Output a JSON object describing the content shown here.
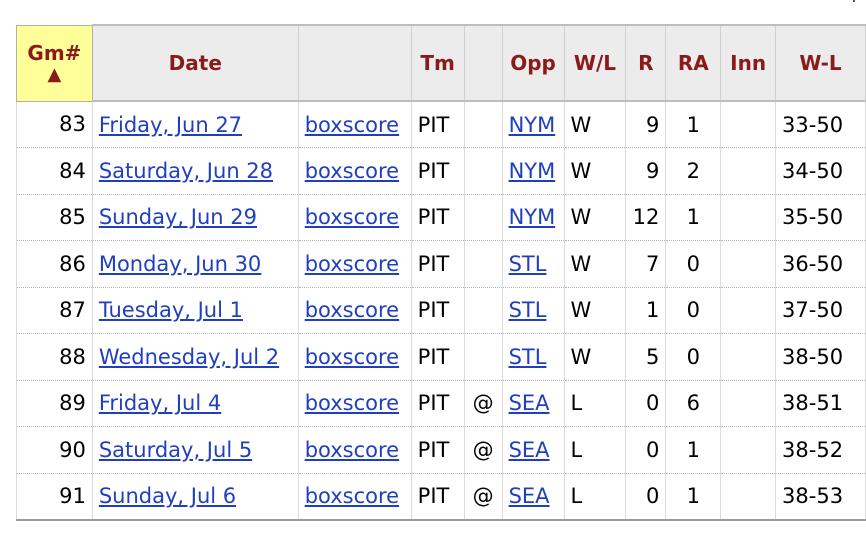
{
  "header": {
    "gm_label": "Gm#",
    "sort_arrow": "▲",
    "date_label": "Date",
    "boxscore_label": "",
    "tm_label": "Tm",
    "at_label": "",
    "opp_label": "Opp",
    "wl_label": "W/L",
    "r_label": "R",
    "ra_label": "RA",
    "inn_label": "Inn",
    "record_label": "W-L"
  },
  "games": [
    {
      "gm": "83",
      "date": "Friday, Jun 27",
      "boxscore": "boxscore",
      "tm": "PIT",
      "at": "",
      "opp": "NYM",
      "wl": "W",
      "r": "9",
      "ra": "1",
      "inn": "",
      "record": "33-50"
    },
    {
      "gm": "84",
      "date": "Saturday, Jun 28",
      "boxscore": "boxscore",
      "tm": "PIT",
      "at": "",
      "opp": "NYM",
      "wl": "W",
      "r": "9",
      "ra": "2",
      "inn": "",
      "record": "34-50"
    },
    {
      "gm": "85",
      "date": "Sunday, Jun 29",
      "boxscore": "boxscore",
      "tm": "PIT",
      "at": "",
      "opp": "NYM",
      "wl": "W",
      "r": "12",
      "ra": "1",
      "inn": "",
      "record": "35-50"
    },
    {
      "gm": "86",
      "date": "Monday, Jun 30",
      "boxscore": "boxscore",
      "tm": "PIT",
      "at": "",
      "opp": "STL",
      "wl": "W",
      "r": "7",
      "ra": "0",
      "inn": "",
      "record": "36-50"
    },
    {
      "gm": "87",
      "date": "Tuesday, Jul 1",
      "boxscore": "boxscore",
      "tm": "PIT",
      "at": "",
      "opp": "STL",
      "wl": "W",
      "r": "1",
      "ra": "0",
      "inn": "",
      "record": "37-50"
    },
    {
      "gm": "88",
      "date": "Wednesday, Jul 2",
      "boxscore": "boxscore",
      "tm": "PIT",
      "at": "",
      "opp": "STL",
      "wl": "W",
      "r": "5",
      "ra": "0",
      "inn": "",
      "record": "38-50"
    },
    {
      "gm": "89",
      "date": "Friday, Jul 4",
      "boxscore": "boxscore",
      "tm": "PIT",
      "at": "@",
      "opp": "SEA",
      "wl": "L",
      "r": "0",
      "ra": "6",
      "inn": "",
      "record": "38-51"
    },
    {
      "gm": "90",
      "date": "Saturday, Jul 5",
      "boxscore": "boxscore",
      "tm": "PIT",
      "at": "@",
      "opp": "SEA",
      "wl": "L",
      "r": "0",
      "ra": "1",
      "inn": "",
      "record": "38-52"
    },
    {
      "gm": "91",
      "date": "Sunday, Jul 6",
      "boxscore": "boxscore",
      "tm": "PIT",
      "at": "@",
      "opp": "SEA",
      "wl": "L",
      "r": "0",
      "ra": "1",
      "inn": "",
      "record": "38-53"
    }
  ]
}
